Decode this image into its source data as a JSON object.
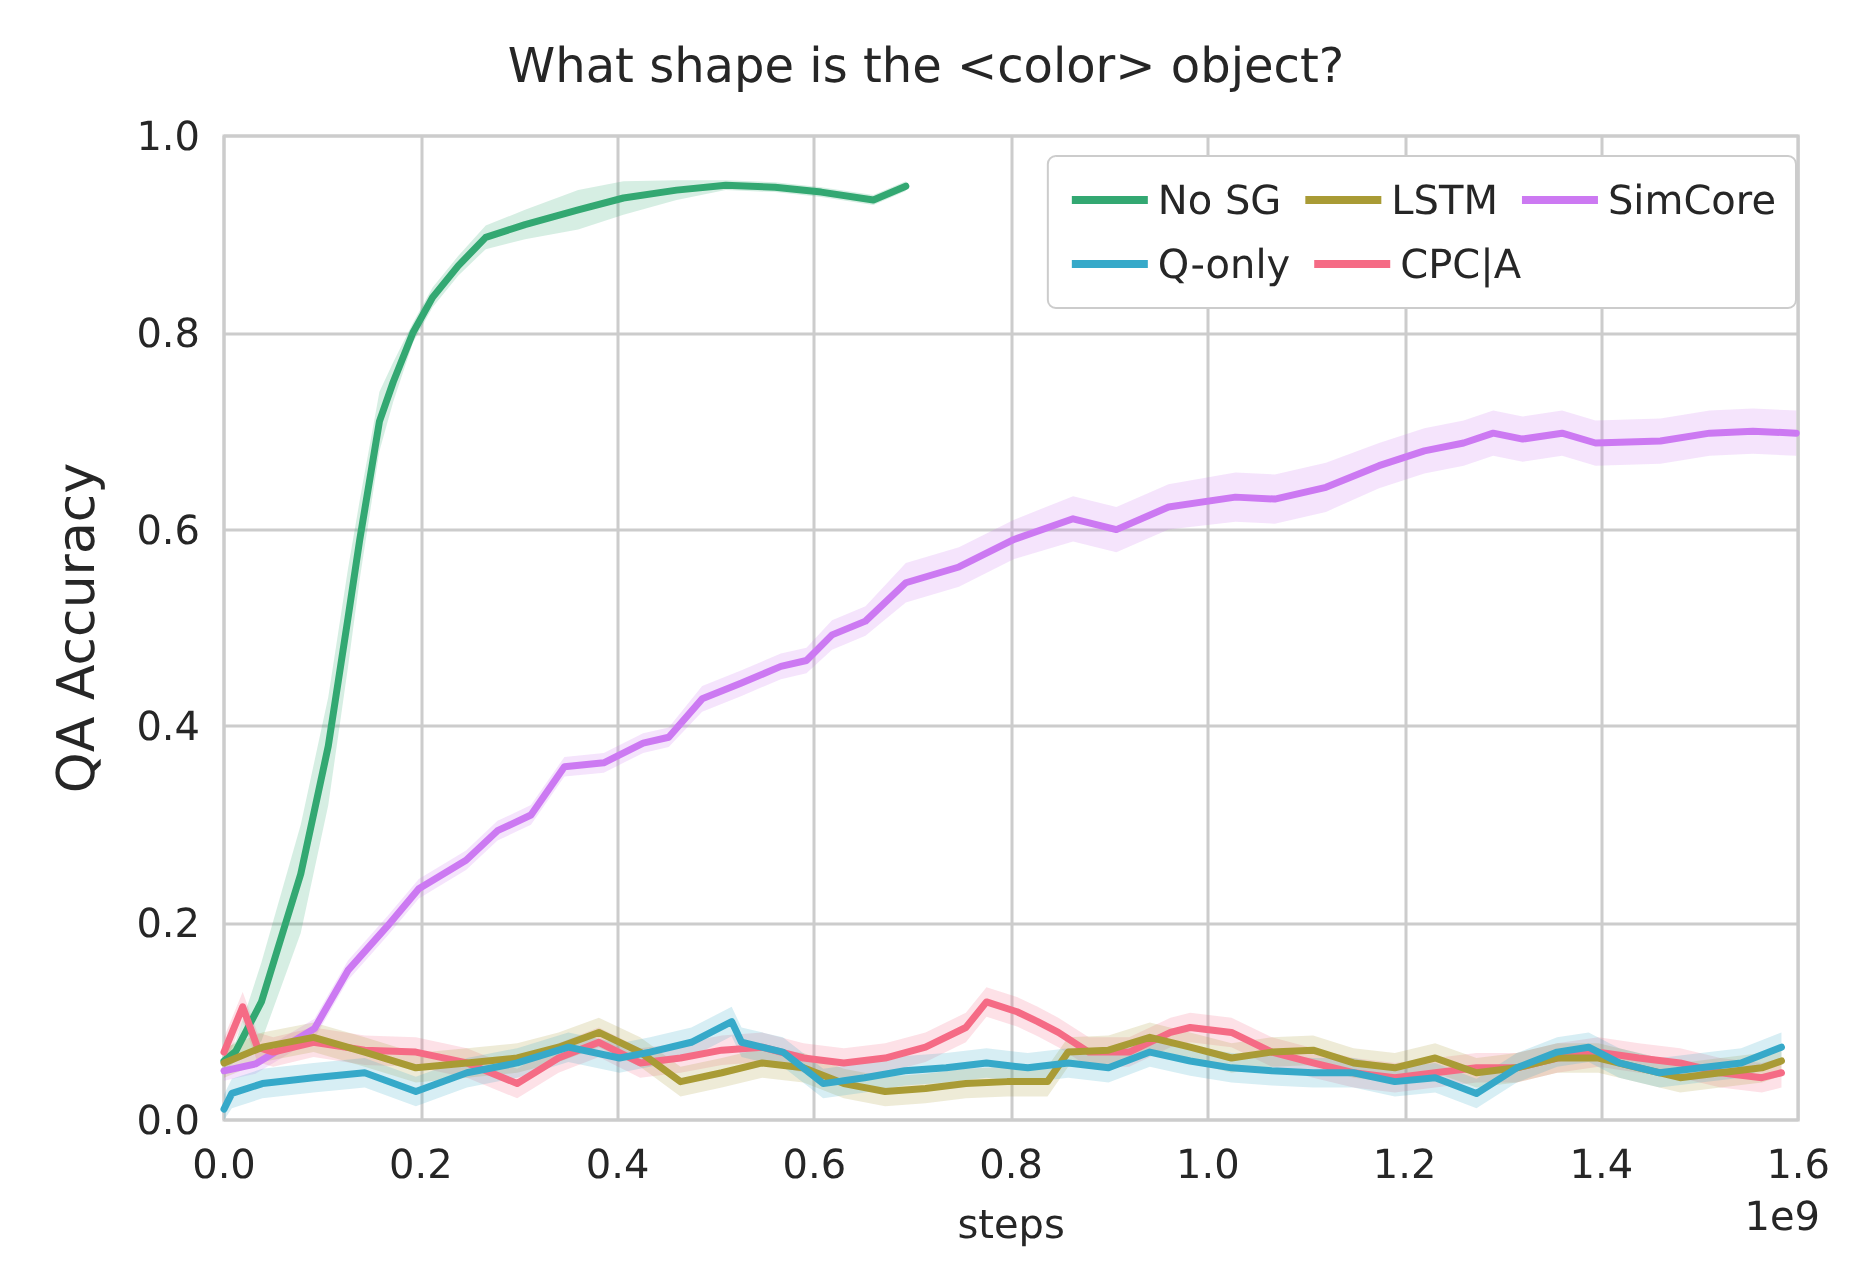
{
  "chart_data": {
    "type": "line",
    "title": "What shape is the <color> object?",
    "xlabel": "steps",
    "ylabel": "QA Accuracy",
    "annotations": [
      "1e9"
    ],
    "xlim": [
      0,
      1.6
    ],
    "xticks": [
      {
        "value": 0,
        "label": "0.0"
      },
      {
        "value": 0.2,
        "label": "0.2"
      },
      {
        "value": 0.4,
        "label": "0.4"
      },
      {
        "value": 0.6,
        "label": "0.6"
      },
      {
        "value": 0.8,
        "label": "0.8"
      },
      {
        "value": 1,
        "label": "1.0"
      },
      {
        "value": 1.2,
        "label": "1.2"
      },
      {
        "value": 1.4,
        "label": "1.4"
      },
      {
        "value": 1.6,
        "label": "1.6"
      }
    ],
    "ylim": [
      0,
      1
    ],
    "yticks": [
      {
        "value": 0,
        "label": "0.0"
      },
      {
        "value": 0.2,
        "label": "0.2"
      },
      {
        "value": 0.4,
        "label": "0.4"
      },
      {
        "value": 0.6,
        "label": "0.6"
      },
      {
        "value": 0.8,
        "label": "0.8"
      },
      {
        "value": 1,
        "label": "1.0"
      }
    ],
    "grid": true,
    "legend": "top right",
    "marker": "none",
    "line_style": "solid",
    "series": [
      {
        "name": "No SG",
        "color": "#33a872",
        "x": [
          0,
          0.012,
          0.038,
          0.078,
          0.106,
          0.126,
          0.138,
          0.158,
          0.172,
          0.192,
          0.212,
          0.238,
          0.266,
          0.306,
          0.36,
          0.406,
          0.46,
          0.51,
          0.56,
          0.607,
          0.66,
          0.693
        ],
        "values": [
          0.06,
          0.07,
          0.12,
          0.25,
          0.38,
          0.51,
          0.59,
          0.71,
          0.75,
          0.8,
          0.836,
          0.868,
          0.897,
          0.91,
          0.925,
          0.937,
          0.945,
          0.95,
          0.948,
          0.943,
          0.935,
          0.949
        ],
        "lower": [
          0.05,
          0.06,
          0.08,
          0.19,
          0.32,
          0.46,
          0.55,
          0.68,
          0.73,
          0.79,
          0.826,
          0.858,
          0.885,
          0.895,
          0.905,
          0.92,
          0.935,
          0.945,
          0.943,
          0.938,
          0.93,
          0.944
        ],
        "upper": [
          0.07,
          0.08,
          0.16,
          0.3,
          0.43,
          0.56,
          0.63,
          0.74,
          0.77,
          0.81,
          0.846,
          0.878,
          0.909,
          0.925,
          0.945,
          0.954,
          0.955,
          0.955,
          0.953,
          0.948,
          0.94,
          0.954
        ]
      },
      {
        "name": "SimCore",
        "color": "#cc79f2",
        "x": [
          0,
          0.032,
          0.092,
          0.126,
          0.166,
          0.198,
          0.246,
          0.278,
          0.312,
          0.346,
          0.386,
          0.426,
          0.452,
          0.486,
          0.526,
          0.566,
          0.592,
          0.618,
          0.652,
          0.693,
          0.747,
          0.803,
          0.863,
          0.907,
          0.96,
          1.028,
          1.068,
          1.12,
          1.174,
          1.22,
          1.26,
          1.29,
          1.32,
          1.36,
          1.394,
          1.46,
          1.51,
          1.554,
          1.598
        ],
        "values": [
          0.05,
          0.057,
          0.093,
          0.152,
          0.197,
          0.235,
          0.264,
          0.294,
          0.31,
          0.359,
          0.363,
          0.383,
          0.389,
          0.428,
          0.444,
          0.461,
          0.467,
          0.493,
          0.507,
          0.546,
          0.562,
          0.59,
          0.611,
          0.6,
          0.623,
          0.633,
          0.631,
          0.643,
          0.665,
          0.68,
          0.688,
          0.698,
          0.692,
          0.698,
          0.688,
          0.69,
          0.698,
          0.7,
          0.698
        ],
        "lower": [
          0.04,
          0.047,
          0.083,
          0.142,
          0.187,
          0.225,
          0.254,
          0.284,
          0.3,
          0.349,
          0.353,
          0.373,
          0.379,
          0.415,
          0.431,
          0.448,
          0.454,
          0.478,
          0.492,
          0.526,
          0.542,
          0.57,
          0.588,
          0.577,
          0.6,
          0.608,
          0.606,
          0.618,
          0.642,
          0.657,
          0.665,
          0.675,
          0.669,
          0.675,
          0.665,
          0.667,
          0.675,
          0.677,
          0.675
        ],
        "upper": [
          0.06,
          0.067,
          0.103,
          0.162,
          0.207,
          0.245,
          0.274,
          0.304,
          0.32,
          0.369,
          0.373,
          0.393,
          0.399,
          0.441,
          0.457,
          0.474,
          0.48,
          0.508,
          0.522,
          0.566,
          0.582,
          0.61,
          0.634,
          0.623,
          0.646,
          0.658,
          0.656,
          0.668,
          0.688,
          0.703,
          0.711,
          0.721,
          0.715,
          0.721,
          0.711,
          0.713,
          0.721,
          0.723,
          0.721
        ]
      },
      {
        "name": "CPC|A",
        "color": "#f56b85",
        "x": [
          0,
          0.019,
          0.034,
          0.05,
          0.091,
          0.143,
          0.195,
          0.247,
          0.298,
          0.34,
          0.381,
          0.423,
          0.464,
          0.506,
          0.547,
          0.589,
          0.63,
          0.672,
          0.713,
          0.754,
          0.775,
          0.806,
          0.827,
          0.848,
          0.879,
          0.92,
          0.962,
          0.982,
          1.024,
          1.065,
          1.107,
          1.148,
          1.19,
          1.231,
          1.273,
          1.314,
          1.355,
          1.397,
          1.438,
          1.48,
          1.521,
          1.563,
          1.583
        ],
        "values": [
          0.069,
          0.115,
          0.074,
          0.069,
          0.079,
          0.071,
          0.069,
          0.058,
          0.037,
          0.063,
          0.079,
          0.058,
          0.063,
          0.071,
          0.074,
          0.063,
          0.058,
          0.063,
          0.074,
          0.094,
          0.12,
          0.11,
          0.1,
          0.089,
          0.069,
          0.069,
          0.089,
          0.094,
          0.089,
          0.069,
          0.058,
          0.048,
          0.043,
          0.048,
          0.053,
          0.053,
          0.063,
          0.069,
          0.063,
          0.058,
          0.048,
          0.043,
          0.048
        ],
        "lower": [
          0.054,
          0.1,
          0.059,
          0.054,
          0.064,
          0.056,
          0.054,
          0.043,
          0.022,
          0.048,
          0.064,
          0.043,
          0.048,
          0.056,
          0.059,
          0.048,
          0.043,
          0.048,
          0.059,
          0.079,
          0.105,
          0.095,
          0.085,
          0.074,
          0.054,
          0.054,
          0.074,
          0.079,
          0.074,
          0.054,
          0.043,
          0.033,
          0.028,
          0.033,
          0.038,
          0.038,
          0.048,
          0.054,
          0.048,
          0.043,
          0.033,
          0.028,
          0.033
        ],
        "upper": [
          0.084,
          0.13,
          0.089,
          0.084,
          0.094,
          0.086,
          0.084,
          0.073,
          0.052,
          0.078,
          0.094,
          0.073,
          0.078,
          0.086,
          0.089,
          0.078,
          0.073,
          0.078,
          0.089,
          0.109,
          0.135,
          0.125,
          0.115,
          0.104,
          0.084,
          0.084,
          0.104,
          0.109,
          0.104,
          0.084,
          0.073,
          0.063,
          0.058,
          0.063,
          0.068,
          0.068,
          0.078,
          0.084,
          0.078,
          0.073,
          0.063,
          0.058,
          0.063
        ]
      },
      {
        "name": "LSTM",
        "color": "#a99b35",
        "x": [
          0,
          0.039,
          0.091,
          0.143,
          0.195,
          0.247,
          0.298,
          0.34,
          0.381,
          0.423,
          0.464,
          0.506,
          0.547,
          0.589,
          0.63,
          0.672,
          0.713,
          0.754,
          0.796,
          0.837,
          0.858,
          0.899,
          0.941,
          0.982,
          1.024,
          1.065,
          1.107,
          1.148,
          1.19,
          1.231,
          1.273,
          1.314,
          1.355,
          1.397,
          1.438,
          1.48,
          1.521,
          1.563,
          1.583
        ],
        "values": [
          0.058,
          0.074,
          0.084,
          0.069,
          0.053,
          0.058,
          0.063,
          0.074,
          0.089,
          0.069,
          0.039,
          0.048,
          0.058,
          0.053,
          0.037,
          0.029,
          0.032,
          0.037,
          0.039,
          0.039,
          0.069,
          0.071,
          0.084,
          0.074,
          0.063,
          0.069,
          0.071,
          0.058,
          0.053,
          0.063,
          0.048,
          0.053,
          0.063,
          0.063,
          0.053,
          0.043,
          0.048,
          0.053,
          0.06
        ],
        "lower": [
          0.043,
          0.059,
          0.069,
          0.054,
          0.038,
          0.043,
          0.048,
          0.059,
          0.074,
          0.054,
          0.024,
          0.033,
          0.043,
          0.038,
          0.022,
          0.014,
          0.017,
          0.022,
          0.024,
          0.024,
          0.054,
          0.056,
          0.069,
          0.059,
          0.048,
          0.054,
          0.056,
          0.043,
          0.038,
          0.048,
          0.033,
          0.038,
          0.048,
          0.048,
          0.038,
          0.028,
          0.033,
          0.038,
          0.045
        ],
        "upper": [
          0.073,
          0.089,
          0.099,
          0.084,
          0.068,
          0.073,
          0.078,
          0.089,
          0.104,
          0.084,
          0.054,
          0.063,
          0.073,
          0.068,
          0.052,
          0.044,
          0.047,
          0.052,
          0.054,
          0.054,
          0.084,
          0.086,
          0.099,
          0.089,
          0.078,
          0.084,
          0.086,
          0.073,
          0.068,
          0.078,
          0.063,
          0.068,
          0.078,
          0.078,
          0.068,
          0.058,
          0.063,
          0.068,
          0.075
        ]
      },
      {
        "name": "Q-only",
        "color": "#36a9c9",
        "x": [
          0,
          0.008,
          0.039,
          0.091,
          0.143,
          0.195,
          0.247,
          0.298,
          0.35,
          0.402,
          0.433,
          0.475,
          0.516,
          0.526,
          0.568,
          0.609,
          0.651,
          0.692,
          0.734,
          0.775,
          0.817,
          0.858,
          0.899,
          0.941,
          0.982,
          1.024,
          1.065,
          1.107,
          1.148,
          1.19,
          1.231,
          1.273,
          1.314,
          1.355,
          1.387,
          1.418,
          1.459,
          1.501,
          1.542,
          1.583
        ],
        "values": [
          0.011,
          0.027,
          0.037,
          0.043,
          0.048,
          0.029,
          0.048,
          0.058,
          0.074,
          0.063,
          0.069,
          0.079,
          0.1,
          0.079,
          0.069,
          0.037,
          0.043,
          0.05,
          0.053,
          0.058,
          0.053,
          0.058,
          0.053,
          0.069,
          0.06,
          0.053,
          0.05,
          0.048,
          0.048,
          0.039,
          0.043,
          0.027,
          0.053,
          0.069,
          0.074,
          0.058,
          0.048,
          0.053,
          0.058,
          0.074
        ],
        "lower": [
          0,
          0.012,
          0.022,
          0.028,
          0.033,
          0.014,
          0.033,
          0.043,
          0.059,
          0.048,
          0.054,
          0.064,
          0.085,
          0.064,
          0.054,
          0.022,
          0.028,
          0.035,
          0.038,
          0.043,
          0.038,
          0.043,
          0.038,
          0.054,
          0.045,
          0.038,
          0.035,
          0.033,
          0.033,
          0.024,
          0.028,
          0.012,
          0.038,
          0.054,
          0.059,
          0.043,
          0.033,
          0.038,
          0.043,
          0.059
        ],
        "upper": [
          0.026,
          0.042,
          0.052,
          0.058,
          0.063,
          0.044,
          0.063,
          0.073,
          0.089,
          0.078,
          0.084,
          0.094,
          0.115,
          0.094,
          0.084,
          0.052,
          0.058,
          0.065,
          0.068,
          0.073,
          0.068,
          0.073,
          0.068,
          0.084,
          0.075,
          0.068,
          0.065,
          0.063,
          0.063,
          0.054,
          0.058,
          0.042,
          0.068,
          0.084,
          0.089,
          0.073,
          0.063,
          0.068,
          0.073,
          0.089
        ]
      }
    ]
  }
}
